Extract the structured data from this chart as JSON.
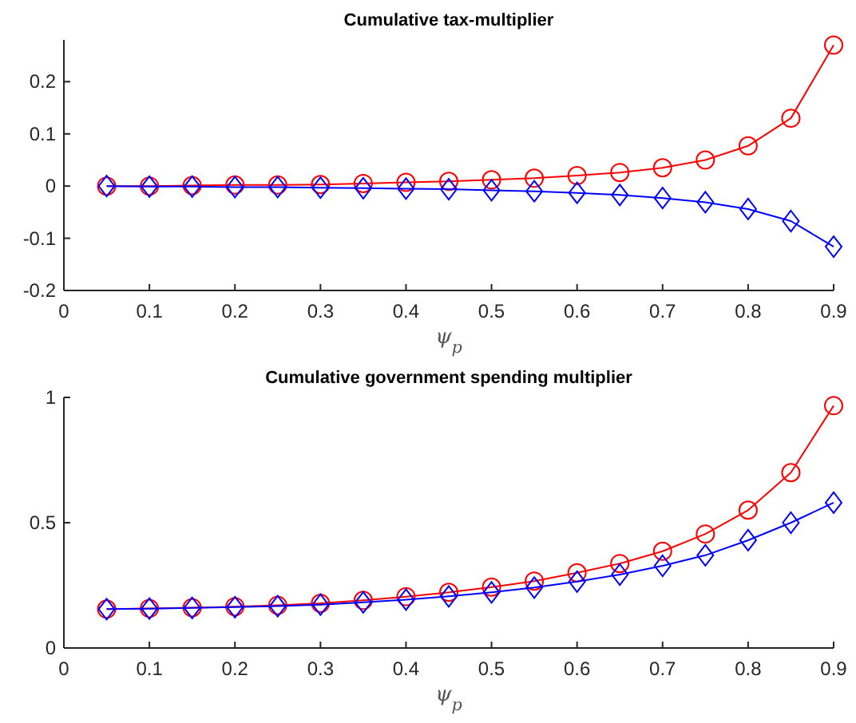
{
  "chart_data": [
    {
      "type": "line",
      "title": "Cumulative tax-multiplier",
      "xlabel": "ψ$_{p}$",
      "x": [
        0.05,
        0.1,
        0.15,
        0.2,
        0.25,
        0.3,
        0.35,
        0.4,
        0.45,
        0.5,
        0.55,
        0.6,
        0.65,
        0.7,
        0.75,
        0.8,
        0.85,
        0.9
      ],
      "xlim": [
        0,
        0.9
      ],
      "xticks": [
        0,
        0.1,
        0.2,
        0.3,
        0.4,
        0.5,
        0.6,
        0.7,
        0.8,
        0.9
      ],
      "ylim": [
        -0.2,
        0.28
      ],
      "yticks": [
        -0.2,
        -0.1,
        0,
        0.1,
        0.2
      ],
      "grid": false,
      "line_style": "solid",
      "series": [
        {
          "color": "#ff0000",
          "marker": "circle",
          "values": [
            0,
            0,
            0.001,
            0.002,
            0.002,
            0.003,
            0.005,
            0.007,
            0.009,
            0.012,
            0.015,
            0.02,
            0.026,
            0.035,
            0.05,
            0.077,
            0.13,
            0.27
          ]
        },
        {
          "color": "#0000ff",
          "marker": "diamond",
          "values": [
            0,
            -0.001,
            -0.001,
            -0.002,
            -0.002,
            -0.003,
            -0.004,
            -0.005,
            -0.006,
            -0.008,
            -0.01,
            -0.013,
            -0.017,
            -0.023,
            -0.031,
            -0.044,
            -0.067,
            -0.116
          ]
        }
      ]
    },
    {
      "type": "line",
      "title": "Cumulative government spending multiplier",
      "xlabel": "ψ$_{p}$",
      "x": [
        0.05,
        0.1,
        0.15,
        0.2,
        0.25,
        0.3,
        0.35,
        0.4,
        0.45,
        0.5,
        0.55,
        0.6,
        0.65,
        0.7,
        0.75,
        0.8,
        0.85,
        0.9
      ],
      "xlim": [
        0,
        0.9
      ],
      "xticks": [
        0,
        0.1,
        0.2,
        0.3,
        0.4,
        0.5,
        0.6,
        0.7,
        0.8,
        0.9
      ],
      "ylim": [
        0,
        1
      ],
      "yticks": [
        0,
        0.5,
        1
      ],
      "grid": false,
      "line_style": "solid",
      "series": [
        {
          "color": "#ff0000",
          "marker": "circle",
          "values": [
            0.155,
            0.158,
            0.161,
            0.165,
            0.17,
            0.178,
            0.19,
            0.205,
            0.222,
            0.243,
            0.267,
            0.3,
            0.337,
            0.386,
            0.455,
            0.55,
            0.7,
            0.967
          ]
        },
        {
          "color": "#0000ff",
          "marker": "diamond",
          "values": [
            0.155,
            0.157,
            0.16,
            0.163,
            0.167,
            0.173,
            0.182,
            0.193,
            0.206,
            0.222,
            0.241,
            0.265,
            0.293,
            0.328,
            0.37,
            0.43,
            0.5,
            0.58
          ]
        }
      ]
    }
  ]
}
